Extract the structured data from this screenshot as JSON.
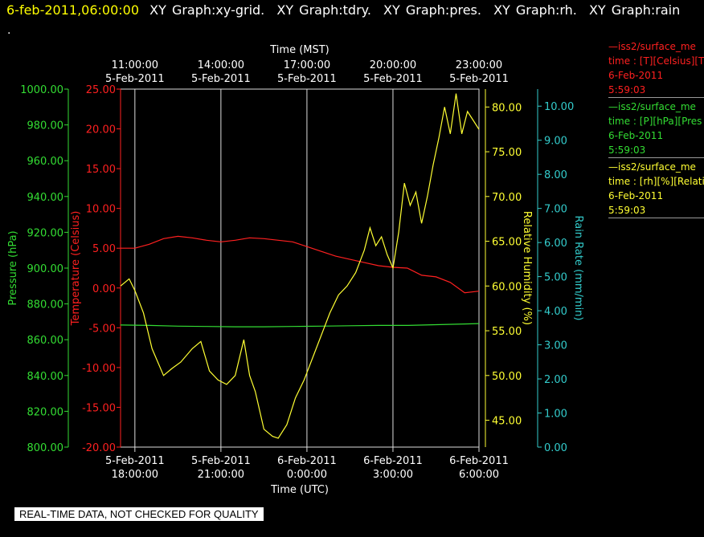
{
  "header": {
    "date_time": "6-feb-2011,06:00:00",
    "tabs": [
      "XY Graph:xy-grid.",
      "XY Graph:tdry.",
      "XY Graph:pres.",
      "XY Graph:rh.",
      "XY Graph:rain"
    ],
    "dot": "."
  },
  "banner": "REAL-TIME DATA, NOT CHECKED FOR QUALITY",
  "legend": [
    {
      "line": "—iss2/surface_me",
      "units": "time : [T][Celsius][T",
      "date": "6-Feb-2011",
      "time": "5:59:03",
      "color": "#ff2020"
    },
    {
      "line": "—iss2/surface_me",
      "units": "time : [P][hPa][Pres",
      "date": "6-Feb-2011",
      "time": "5:59:03",
      "color": "#33dd33"
    },
    {
      "line": "—iss2/surface_me",
      "units": "time : [rh][%][Relati",
      "date": "6-Feb-2011",
      "time": "5:59:03",
      "color": "#ffff33"
    }
  ],
  "colors": {
    "temperature": "#ff2020",
    "pressure": "#33dd33",
    "humidity": "#ffff33",
    "rain": "#33cccc",
    "grid": "#dddddd"
  },
  "chart_data": {
    "type": "line",
    "x_range_utc_hours": [
      17.5,
      30.0
    ],
    "top_axis": {
      "label": "Time (MST)",
      "ticks": [
        {
          "x": 18,
          "time": "11:00:00",
          "date": "5-Feb-2011"
        },
        {
          "x": 21,
          "time": "14:00:00",
          "date": "5-Feb-2011"
        },
        {
          "x": 24,
          "time": "17:00:00",
          "date": "5-Feb-2011"
        },
        {
          "x": 27,
          "time": "20:00:00",
          "date": "5-Feb-2011"
        },
        {
          "x": 30,
          "time": "23:00:00",
          "date": "5-Feb-2011"
        }
      ]
    },
    "bottom_axis": {
      "label": "Time (UTC)",
      "ticks": [
        {
          "x": 18,
          "date": "5-Feb-2011",
          "time": "18:00:00"
        },
        {
          "x": 21,
          "date": "5-Feb-2011",
          "time": "21:00:00"
        },
        {
          "x": 24,
          "date": "6-Feb-2011",
          "time": "0:00:00"
        },
        {
          "x": 27,
          "date": "6-Feb-2011",
          "time": "3:00:00"
        },
        {
          "x": 30,
          "date": "6-Feb-2011",
          "time": "6:00:00"
        }
      ]
    },
    "y_axes": {
      "pressure": {
        "label": "Pressure (hPa)",
        "range": [
          800,
          1000
        ],
        "ticks": [
          "800.00",
          "820.00",
          "840.00",
          "860.00",
          "880.00",
          "900.00",
          "920.00",
          "940.00",
          "960.00",
          "980.00",
          "1000.00"
        ]
      },
      "temperature": {
        "label": "Temperature (Celsius)",
        "range": [
          -20,
          25
        ],
        "ticks": [
          "-20.00",
          "-15.00",
          "-10.00",
          "-5.00",
          "0.00",
          "5.00",
          "10.00",
          "15.00",
          "20.00",
          "25.00"
        ]
      },
      "humidity": {
        "label": "Relative Humidity (%)",
        "range": [
          42,
          82
        ],
        "ticks": [
          "45.00",
          "50.00",
          "55.00",
          "60.00",
          "65.00",
          "70.00",
          "75.00",
          "80.00"
        ]
      },
      "rain": {
        "label": "Rain Rate (mm/min)",
        "range": [
          0,
          10.5
        ],
        "ticks": [
          "0.00",
          "1.00",
          "2.00",
          "3.00",
          "4.00",
          "5.00",
          "6.00",
          "7.00",
          "8.00",
          "9.00",
          "10.00"
        ]
      }
    },
    "series": [
      {
        "name": "iss2/surface_me [T][Celsius]",
        "axis": "temperature",
        "x": [
          17.5,
          18.0,
          18.5,
          19.0,
          19.5,
          20.0,
          20.5,
          21.0,
          21.5,
          22.0,
          22.5,
          23.0,
          23.5,
          24.0,
          24.5,
          25.0,
          25.5,
          26.0,
          26.5,
          27.0,
          27.5,
          28.0,
          28.5,
          29.0,
          29.5,
          30.0
        ],
        "y": [
          5.0,
          5.0,
          5.5,
          6.2,
          6.5,
          6.3,
          6.0,
          5.8,
          6.0,
          6.3,
          6.2,
          6.0,
          5.8,
          5.2,
          4.6,
          4.0,
          3.6,
          3.2,
          2.8,
          2.6,
          2.5,
          1.6,
          1.4,
          0.7,
          -0.6,
          -0.4
        ]
      },
      {
        "name": "iss2/surface_me [P][hPa]",
        "axis": "pressure",
        "x": [
          17.5,
          18.5,
          19.5,
          20.5,
          21.5,
          22.5,
          23.5,
          24.5,
          25.5,
          26.5,
          27.5,
          28.5,
          29.5,
          30.0
        ],
        "y": [
          868.2,
          868.0,
          867.6,
          867.4,
          867.2,
          867.2,
          867.4,
          867.6,
          867.8,
          868.0,
          868.0,
          868.4,
          868.8,
          869.0
        ]
      },
      {
        "name": "iss2/surface_me [rh][%]",
        "axis": "humidity",
        "x": [
          17.5,
          17.8,
          18.0,
          18.3,
          18.6,
          19.0,
          19.3,
          19.6,
          20.0,
          20.3,
          20.6,
          20.9,
          21.2,
          21.5,
          21.8,
          22.0,
          22.2,
          22.5,
          22.8,
          23.0,
          23.3,
          23.6,
          23.9,
          24.2,
          24.5,
          24.8,
          25.1,
          25.4,
          25.7,
          26.0,
          26.2,
          26.4,
          26.6,
          26.8,
          27.0,
          27.2,
          27.4,
          27.6,
          27.8,
          28.0,
          28.2,
          28.4,
          28.6,
          28.8,
          29.0,
          29.2,
          29.4,
          29.6,
          29.8,
          30.0
        ],
        "y": [
          60.0,
          60.8,
          59.5,
          57.0,
          53.0,
          50.0,
          50.8,
          51.5,
          53.0,
          53.8,
          50.5,
          49.5,
          49.0,
          50.0,
          54.0,
          50.0,
          48.2,
          44.0,
          43.2,
          43.0,
          44.5,
          47.5,
          49.5,
          52.0,
          54.5,
          57.0,
          59.0,
          60.0,
          61.5,
          64.0,
          66.5,
          64.5,
          65.5,
          63.5,
          62.0,
          66.0,
          71.5,
          69.0,
          70.5,
          67.0,
          70.0,
          73.5,
          76.5,
          80.0,
          77.0,
          81.5,
          77.0,
          79.5,
          78.5,
          77.5
        ]
      }
    ]
  }
}
